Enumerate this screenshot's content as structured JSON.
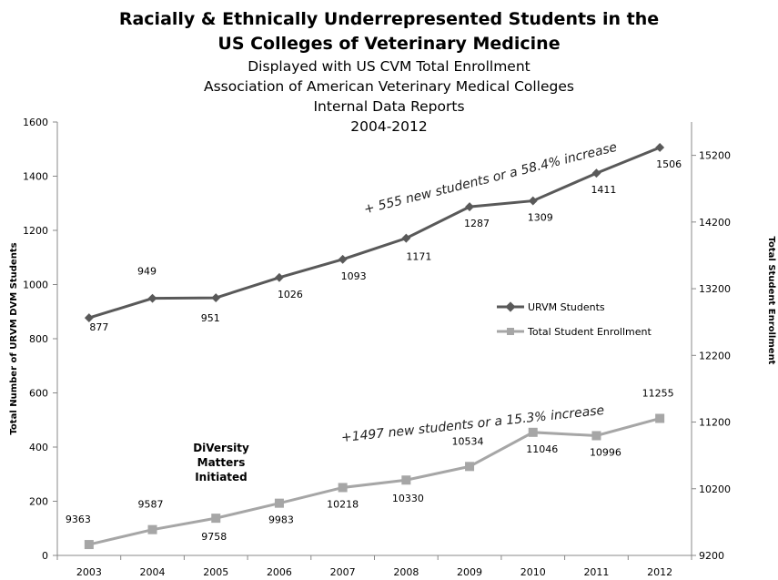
{
  "title_lines": [
    "Racially & Ethnically Underrepresented Students in the",
    "US Colleges of Veterinary Medicine"
  ],
  "subtitle_lines": [
    "Displayed with US CVM Total Enrollment",
    "Association of American Veterinary Medical Colleges",
    "Internal Data Reports",
    "2004-2012"
  ],
  "chart_data": {
    "type": "line",
    "categories": [
      "2003",
      "2004",
      "2005",
      "2006",
      "2007",
      "2008",
      "2009",
      "2010",
      "2011",
      "2012"
    ],
    "series": [
      {
        "name": "URVM Students",
        "axis": "left",
        "color": "#595959",
        "marker": "diamond",
        "values": [
          877,
          949,
          951,
          1026,
          1093,
          1171,
          1287,
          1309,
          1411,
          1506
        ],
        "labels": [
          "877",
          "949",
          "951",
          "1026",
          "1093",
          "1171",
          "1287",
          "1309",
          "1411",
          "1506"
        ]
      },
      {
        "name": "Total Student Enrollment",
        "axis": "right",
        "color": "#a6a6a6",
        "marker": "square",
        "values": [
          9363,
          9587,
          9758,
          9983,
          10218,
          10330,
          10534,
          11046,
          10996,
          11255
        ],
        "labels": [
          "9363",
          "9587",
          "9758",
          "9983",
          "10218",
          "10330",
          "10534",
          "11046",
          "10996",
          "11255"
        ]
      }
    ],
    "ylabel": "Total Number of URVM DVM Students",
    "y2label": "Total Student Enrollment",
    "ylim": [
      0,
      1600
    ],
    "yticks": [
      "0",
      "200",
      "400",
      "600",
      "800",
      "1000",
      "1200",
      "1400",
      "1600"
    ],
    "y2lim": [
      9200,
      15700
    ],
    "y2ticks": [
      "9200",
      "10200",
      "11200",
      "12200",
      "13200",
      "14200",
      "15200"
    ],
    "annotations": [
      "+ 555 new students or a 58.4% increase",
      "+1497 new students or a 15.3% increase"
    ],
    "note_lines": [
      "DiVersity",
      "Matters",
      "Initiated"
    ],
    "grid": false,
    "legend": "right"
  }
}
